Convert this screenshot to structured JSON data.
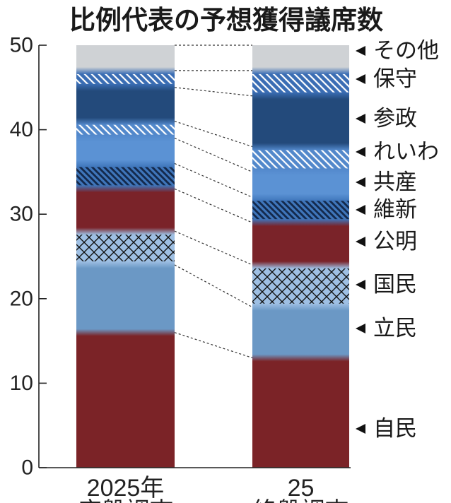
{
  "chart_data": {
    "type": "bar",
    "stacked": true,
    "title": "比例代表の予想獲得議席数",
    "categories": [
      [
        "2025年",
        "序盤調査"
      ],
      [
        "25",
        "終盤調査"
      ]
    ],
    "ylim": [
      0,
      50
    ],
    "yticks": [
      0,
      10,
      20,
      30,
      40,
      50
    ],
    "grid": false,
    "legend": "right",
    "series": [
      {
        "name": "自民",
        "values": [
          16,
          13
        ],
        "color": "#7b2327",
        "pattern": "solid"
      },
      {
        "name": "立民",
        "values": [
          8,
          6
        ],
        "color": "#6b98c5",
        "pattern": "solid"
      },
      {
        "name": "国民",
        "values": [
          4,
          5
        ],
        "color": "#9ebfe3",
        "pattern": "crosshatch",
        "line_color": "#111111"
      },
      {
        "name": "公明",
        "values": [
          5,
          5
        ],
        "color": "#7a2329",
        "pattern": "solid"
      },
      {
        "name": "維新",
        "values": [
          3,
          3
        ],
        "color": "#3f76bb",
        "pattern": "diagonal",
        "line_color": "#13284a"
      },
      {
        "name": "共産",
        "values": [
          3,
          3
        ],
        "color": "#5b92d4",
        "pattern": "solid"
      },
      {
        "name": "れいわ",
        "values": [
          2,
          3
        ],
        "color": "#5288cb",
        "pattern": "diagonal",
        "line_color": "#ffffff"
      },
      {
        "name": "参政",
        "values": [
          4,
          6
        ],
        "color": "#234a7b",
        "pattern": "solid"
      },
      {
        "name": "保守",
        "values": [
          2,
          3
        ],
        "color": "#3a6db4",
        "pattern": "diagonal",
        "line_color": "#ffffff"
      },
      {
        "name": "その他",
        "values": [
          3,
          3
        ],
        "color": "#cfd2d5",
        "pattern": "solid"
      }
    ]
  }
}
